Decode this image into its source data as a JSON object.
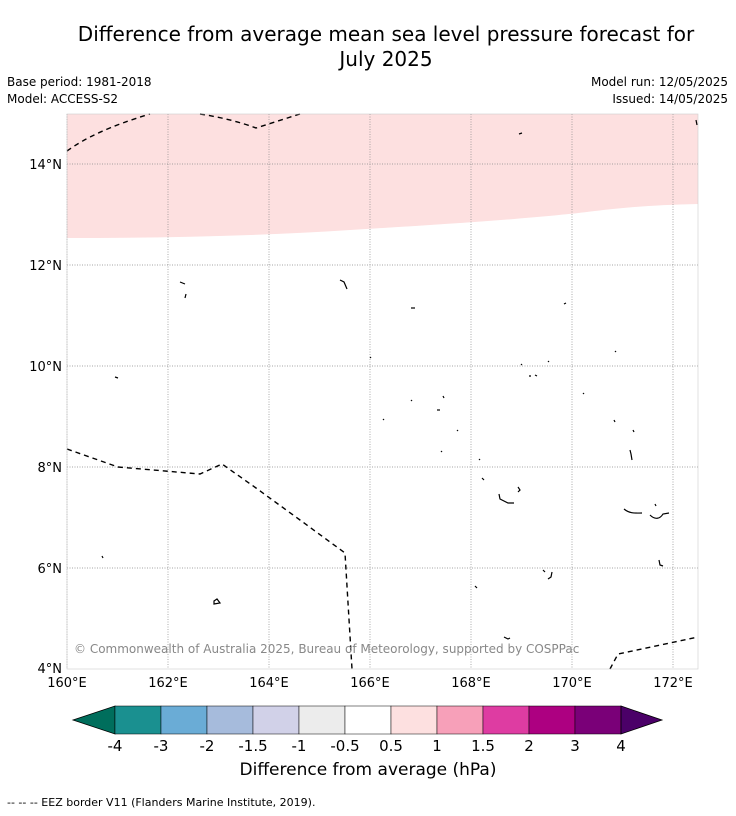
{
  "title_line1": "Difference from average mean sea level pressure forecast for",
  "title_line2": "July 2025",
  "meta": {
    "base_period": "Base period: 1981-2018",
    "model": "Model: ACCESS-S2",
    "model_run": "Model run: 12/05/2025",
    "issued": "Issued: 14/05/2025"
  },
  "map": {
    "lat_labels": [
      "14°N",
      "12°N",
      "10°N",
      "8°N",
      "6°N",
      "4°N"
    ],
    "lon_labels": [
      "160°E",
      "162°E",
      "164°E",
      "166°E",
      "168°E",
      "170°E",
      "172°E"
    ],
    "copyright": "© Commonwealth of Australia 2025, Bureau of Meteorology, supported by COSPPac",
    "anomaly_fill_color": "#fde0e0"
  },
  "colorbar": {
    "title": "Difference from average (hPa)",
    "ticks": [
      "-4",
      "-3",
      "-2",
      "-1.5",
      "-1",
      "-0.5",
      "0.5",
      "1",
      "1.5",
      "2",
      "3",
      "4"
    ],
    "colors": [
      "#006e5c",
      "#1a9090",
      "#6aacd6",
      "#a6bbdc",
      "#d1d1e8",
      "#ececec",
      "#ffffff",
      "#fde0e0",
      "#f7a0b9",
      "#de3ca2",
      "#ad0081",
      "#7a0078",
      "#4b0068"
    ]
  },
  "footer": "--  --  -- EEZ border V11 (Flanders Marine Institute, 2019)."
}
